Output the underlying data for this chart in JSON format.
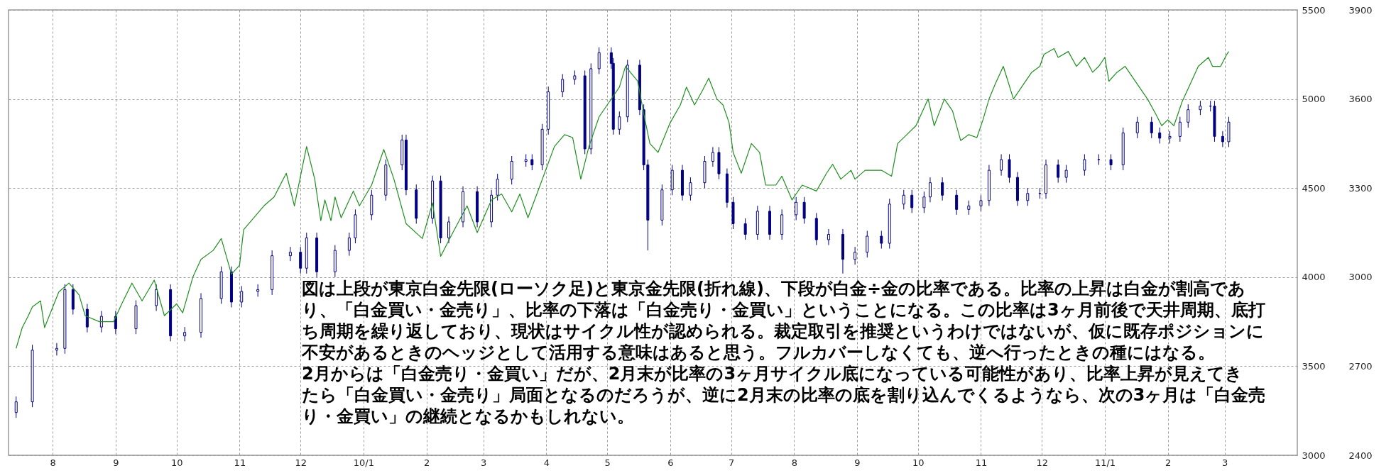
{
  "chart_data": {
    "type": "candlestick",
    "xlim": [
      "2009-07-12",
      "2011-04-04"
    ],
    "xticks": [
      {
        "value": "2009-08-01",
        "label": "8"
      },
      {
        "value": "2009-09-01",
        "label": "9"
      },
      {
        "value": "2009-10-01",
        "label": "10"
      },
      {
        "value": "2009-11-01",
        "label": "11"
      },
      {
        "value": "2009-12-01",
        "label": "12"
      },
      {
        "value": "2010-01-01",
        "label": "10/1"
      },
      {
        "value": "2010-02-01",
        "label": "2"
      },
      {
        "value": "2010-03-01",
        "label": "3"
      },
      {
        "value": "2010-04-01",
        "label": "4"
      },
      {
        "value": "2010-05-01",
        "label": "5"
      },
      {
        "value": "2010-06-01",
        "label": "6"
      },
      {
        "value": "2010-07-01",
        "label": "7"
      },
      {
        "value": "2010-08-01",
        "label": "8"
      },
      {
        "value": "2010-09-01",
        "label": "9"
      },
      {
        "value": "2010-10-01",
        "label": "10"
      },
      {
        "value": "2010-11-01",
        "label": "11"
      },
      {
        "value": "2010-12-01",
        "label": "12"
      },
      {
        "value": "2011-01-01",
        "label": "11/1"
      },
      {
        "value": "2011-02-01",
        "label": "2"
      },
      {
        "value": "2011-03-01",
        "label": "3"
      }
    ],
    "ylim": [
      3000,
      5500
    ],
    "yticks": [
      3000,
      3500,
      4000,
      4500,
      5000,
      5500
    ],
    "y2lim": [
      2400,
      3900
    ],
    "y2ticks": [
      2400,
      2700,
      3000,
      3300,
      3600,
      3900
    ],
    "grid": true,
    "color": "#000080",
    "x": [
      "2009-07-14",
      "2009-07-22",
      "2009-08-03",
      "2009-08-07",
      "2009-08-11",
      "2009-08-18",
      "2009-08-25",
      "2009-09-01",
      "2009-09-11",
      "2009-09-21",
      "2009-09-28",
      "2009-10-05",
      "2009-10-13",
      "2009-10-23",
      "2009-10-28",
      "2009-11-02",
      "2009-11-10",
      "2009-11-17",
      "2009-11-26",
      "2009-12-01",
      "2009-12-04",
      "2009-12-09",
      "2009-12-18",
      "2009-12-25",
      "2009-12-28",
      "2010-01-05",
      "2010-01-12",
      "2010-01-20",
      "2010-01-22",
      "2010-01-27",
      "2010-02-04",
      "2010-02-08",
      "2010-02-12",
      "2010-02-19",
      "2010-02-26",
      "2010-03-05",
      "2010-03-08",
      "2010-03-15",
      "2010-03-22",
      "2010-03-25",
      "2010-03-30",
      "2010-04-02",
      "2010-04-09",
      "2010-04-15",
      "2010-04-20",
      "2010-04-23",
      "2010-04-27",
      "2010-05-03",
      "2010-05-04",
      "2010-05-07",
      "2010-05-11",
      "2010-05-17",
      "2010-05-19",
      "2010-05-21",
      "2010-05-28",
      "2010-06-02",
      "2010-06-07",
      "2010-06-11",
      "2010-06-18",
      "2010-06-22",
      "2010-06-25",
      "2010-06-29",
      "2010-07-02",
      "2010-07-08",
      "2010-07-14",
      "2010-07-20",
      "2010-07-26",
      "2010-08-02",
      "2010-08-06",
      "2010-08-12",
      "2010-08-18",
      "2010-08-25",
      "2010-08-31",
      "2010-09-06",
      "2010-09-13",
      "2010-09-17",
      "2010-09-24",
      "2010-09-28",
      "2010-10-04",
      "2010-10-07",
      "2010-10-13",
      "2010-10-20",
      "2010-10-26",
      "2010-11-01",
      "2010-11-05",
      "2010-11-11",
      "2010-11-15",
      "2010-11-19",
      "2010-11-24",
      "2010-11-30",
      "2010-12-03",
      "2010-12-09",
      "2010-12-13",
      "2010-12-22",
      "2010-12-29",
      "2011-01-04",
      "2011-01-10",
      "2011-01-17",
      "2011-01-24",
      "2011-01-28",
      "2011-02-02",
      "2011-02-07",
      "2011-02-11",
      "2011-02-17",
      "2011-02-22",
      "2011-02-24",
      "2011-02-28",
      "2011-03-03"
    ],
    "ohlc": [
      [
        3240,
        3330,
        3210,
        3300
      ],
      [
        3300,
        3620,
        3270,
        3590
      ],
      [
        3590,
        3630,
        3560,
        3600
      ],
      [
        3600,
        3960,
        3570,
        3930
      ],
      [
        3930,
        3960,
        3790,
        3820
      ],
      [
        3820,
        3850,
        3690,
        3720
      ],
      [
        3720,
        3810,
        3690,
        3780
      ],
      [
        3780,
        3810,
        3680,
        3710
      ],
      [
        3710,
        3870,
        3680,
        3840
      ],
      [
        3840,
        3960,
        3810,
        3930
      ],
      [
        3930,
        3960,
        3640,
        3670
      ],
      [
        3670,
        3720,
        3640,
        3690
      ],
      [
        3690,
        3910,
        3660,
        3880
      ],
      [
        3880,
        4060,
        3850,
        4030
      ],
      [
        4030,
        4060,
        3830,
        3860
      ],
      [
        3860,
        3950,
        3830,
        3920
      ],
      [
        3920,
        3960,
        3890,
        3930
      ],
      [
        3930,
        4150,
        3900,
        4120
      ],
      [
        4120,
        4170,
        4090,
        4140
      ],
      [
        4140,
        4170,
        4020,
        4050
      ],
      [
        4050,
        4250,
        4020,
        4220
      ],
      [
        4220,
        4250,
        4000,
        4030
      ],
      [
        4030,
        4180,
        4000,
        4150
      ],
      [
        4150,
        4250,
        4120,
        4220
      ],
      [
        4220,
        4380,
        4190,
        4350
      ],
      [
        4350,
        4490,
        4320,
        4460
      ],
      [
        4460,
        4660,
        4430,
        4630
      ],
      [
        4630,
        4800,
        4600,
        4770
      ],
      [
        4770,
        4800,
        4460,
        4490
      ],
      [
        4490,
        4520,
        4300,
        4330
      ],
      [
        4330,
        4570,
        4300,
        4540
      ],
      [
        4540,
        4570,
        4190,
        4220
      ],
      [
        4220,
        4340,
        4190,
        4310
      ],
      [
        4310,
        4510,
        4280,
        4480
      ],
      [
        4480,
        4510,
        4280,
        4310
      ],
      [
        4310,
        4490,
        4280,
        4460
      ],
      [
        4460,
        4580,
        4430,
        4550
      ],
      [
        4550,
        4680,
        4520,
        4650
      ],
      [
        4650,
        4690,
        4620,
        4660
      ],
      [
        4660,
        4690,
        4600,
        4630
      ],
      [
        4630,
        4860,
        4600,
        4830
      ],
      [
        4830,
        5070,
        4800,
        5040
      ],
      [
        5040,
        5140,
        5010,
        5110
      ],
      [
        5110,
        5160,
        5080,
        5130
      ],
      [
        5130,
        5160,
        4690,
        4720
      ],
      [
        4720,
        5200,
        4690,
        5170
      ],
      [
        5170,
        5290,
        5140,
        5260
      ],
      [
        5260,
        5290,
        5170,
        5200
      ],
      [
        5200,
        5230,
        4800,
        4830
      ],
      [
        4830,
        4930,
        4800,
        4900
      ],
      [
        4900,
        5220,
        4870,
        5190
      ],
      [
        5190,
        5220,
        4910,
        4940
      ],
      [
        4940,
        4970,
        4600,
        4630
      ],
      [
        4630,
        4660,
        4150,
        4320
      ],
      [
        4320,
        4520,
        4290,
        4490
      ],
      [
        4490,
        4630,
        4460,
        4600
      ],
      [
        4600,
        4630,
        4430,
        4460
      ],
      [
        4460,
        4560,
        4430,
        4530
      ],
      [
        4530,
        4680,
        4500,
        4650
      ],
      [
        4650,
        4730,
        4620,
        4700
      ],
      [
        4700,
        4730,
        4550,
        4580
      ],
      [
        4580,
        4610,
        4390,
        4420
      ],
      [
        4420,
        4450,
        4270,
        4300
      ],
      [
        4300,
        4330,
        4210,
        4240
      ],
      [
        4240,
        4400,
        4210,
        4370
      ],
      [
        4370,
        4400,
        4210,
        4240
      ],
      [
        4240,
        4380,
        4210,
        4350
      ],
      [
        4350,
        4450,
        4320,
        4420
      ],
      [
        4420,
        4450,
        4300,
        4330
      ],
      [
        4330,
        4360,
        4180,
        4210
      ],
      [
        4210,
        4270,
        4180,
        4240
      ],
      [
        4240,
        4270,
        4020,
        4100
      ],
      [
        4100,
        4170,
        4070,
        4140
      ],
      [
        4140,
        4260,
        4110,
        4230
      ],
      [
        4230,
        4260,
        4160,
        4190
      ],
      [
        4190,
        4440,
        4160,
        4410
      ],
      [
        4410,
        4490,
        4380,
        4460
      ],
      [
        4460,
        4490,
        4360,
        4390
      ],
      [
        4390,
        4480,
        4360,
        4450
      ],
      [
        4450,
        4560,
        4420,
        4530
      ],
      [
        4530,
        4560,
        4430,
        4460
      ],
      [
        4460,
        4490,
        4350,
        4380
      ],
      [
        4380,
        4430,
        4350,
        4400
      ],
      [
        4400,
        4460,
        4370,
        4430
      ],
      [
        4430,
        4630,
        4400,
        4600
      ],
      [
        4600,
        4690,
        4570,
        4660
      ],
      [
        4660,
        4690,
        4530,
        4560
      ],
      [
        4560,
        4590,
        4400,
        4430
      ],
      [
        4430,
        4500,
        4400,
        4470
      ],
      [
        4470,
        4500,
        4440,
        4470
      ],
      [
        4470,
        4660,
        4440,
        4630
      ],
      [
        4630,
        4660,
        4530,
        4560
      ],
      [
        4560,
        4630,
        4530,
        4600
      ],
      [
        4600,
        4690,
        4570,
        4660
      ],
      [
        4660,
        4690,
        4630,
        4660
      ],
      [
        4660,
        4690,
        4600,
        4630
      ],
      [
        4630,
        4840,
        4600,
        4810
      ],
      [
        4810,
        4900,
        4780,
        4870
      ],
      [
        4870,
        4900,
        4780,
        4810
      ],
      [
        4810,
        4840,
        4750,
        4780
      ],
      [
        4780,
        4820,
        4750,
        4790
      ],
      [
        4790,
        4900,
        4760,
        4870
      ],
      [
        4870,
        4970,
        4840,
        4940
      ],
      [
        4940,
        4990,
        4910,
        4960
      ],
      [
        4960,
        4990,
        4930,
        4960
      ],
      [
        4960,
        4990,
        4760,
        4790
      ],
      [
        4790,
        4820,
        4730,
        4760
      ],
      [
        4760,
        4900,
        4730,
        4870
      ]
    ],
    "series": [
      {
        "type": "line",
        "axis": "y2",
        "color": "#1f8f1f",
        "x": [
          "2009-07-14",
          "2009-07-17",
          "2009-07-20",
          "2009-07-22",
          "2009-07-26",
          "2009-07-28",
          "2009-08-04",
          "2009-08-09",
          "2009-08-14",
          "2009-08-17",
          "2009-08-24",
          "2009-08-31",
          "2009-09-04",
          "2009-09-09",
          "2009-09-14",
          "2009-09-20",
          "2009-09-25",
          "2009-10-01",
          "2009-10-04",
          "2009-10-09",
          "2009-10-13",
          "2009-10-19",
          "2009-10-23",
          "2009-10-28",
          "2009-11-01",
          "2009-11-03",
          "2009-11-08",
          "2009-11-13",
          "2009-11-18",
          "2009-11-24",
          "2009-11-28",
          "2009-12-04",
          "2009-12-08",
          "2009-12-11",
          "2009-12-13",
          "2009-12-16",
          "2009-12-18",
          "2009-12-21",
          "2009-12-27",
          "2009-12-30",
          "2010-01-05",
          "2010-01-11",
          "2010-01-16",
          "2010-01-22",
          "2010-01-30",
          "2010-02-04",
          "2010-02-08",
          "2010-02-14",
          "2010-02-21",
          "2010-02-26",
          "2010-03-05",
          "2010-03-10",
          "2010-03-15",
          "2010-03-19",
          "2010-03-23",
          "2010-03-29",
          "2010-04-05",
          "2010-04-10",
          "2010-04-14",
          "2010-04-18",
          "2010-04-22",
          "2010-04-27",
          "2010-05-01",
          "2010-05-07",
          "2010-05-10",
          "2010-05-16",
          "2010-05-19",
          "2010-05-22",
          "2010-05-26",
          "2010-06-01",
          "2010-06-06",
          "2010-06-09",
          "2010-06-13",
          "2010-06-17",
          "2010-06-20",
          "2010-06-24",
          "2010-06-27",
          "2010-06-30",
          "2010-07-02",
          "2010-07-06",
          "2010-07-11",
          "2010-07-15",
          "2010-07-18",
          "2010-07-23",
          "2010-07-26",
          "2010-07-31",
          "2010-08-05",
          "2010-08-12",
          "2010-08-17",
          "2010-08-20",
          "2010-08-24",
          "2010-08-29",
          "2010-08-31",
          "2010-09-05",
          "2010-09-13",
          "2010-09-18",
          "2010-09-21",
          "2010-09-30",
          "2010-10-06",
          "2010-10-09",
          "2010-10-14",
          "2010-10-18",
          "2010-10-22",
          "2010-10-26",
          "2010-10-30",
          "2010-11-02",
          "2010-11-05",
          "2010-11-08",
          "2010-11-12",
          "2010-11-17",
          "2010-11-22",
          "2010-11-26",
          "2010-11-30",
          "2010-12-02",
          "2010-12-07",
          "2010-12-09",
          "2010-12-14",
          "2010-12-18",
          "2010-12-22",
          "2010-12-26",
          "2010-12-29",
          "2011-01-01",
          "2011-01-03",
          "2011-01-07",
          "2011-01-11",
          "2011-01-19",
          "2011-01-22",
          "2011-01-26",
          "2011-01-29",
          "2011-02-01",
          "2011-02-04",
          "2011-02-08",
          "2011-02-12",
          "2011-02-16",
          "2011-02-21",
          "2011-02-23",
          "2011-02-27",
          "2011-03-02",
          "2011-03-03"
        ],
        "values": [
          2760,
          2830,
          2870,
          2900,
          2920,
          2830,
          2950,
          2980,
          2940,
          2870,
          2850,
          2850,
          2910,
          2980,
          2920,
          2990,
          2870,
          2910,
          2880,
          3000,
          3060,
          3090,
          3130,
          3010,
          3040,
          3160,
          3200,
          3240,
          3270,
          3350,
          3240,
          3440,
          3330,
          3190,
          3260,
          3190,
          3270,
          3200,
          3290,
          3240,
          3310,
          3430,
          3330,
          3180,
          3130,
          3250,
          3070,
          3150,
          3240,
          3150,
          3260,
          3280,
          3220,
          3280,
          3200,
          3310,
          3440,
          3480,
          3470,
          3330,
          3440,
          3540,
          3580,
          3640,
          3710,
          3660,
          3550,
          3450,
          3420,
          3520,
          3580,
          3640,
          3580,
          3630,
          3670,
          3600,
          3580,
          3520,
          3420,
          3350,
          3450,
          3420,
          3310,
          3310,
          3340,
          3260,
          3310,
          3290,
          3350,
          3380,
          3330,
          3360,
          3330,
          3360,
          3360,
          3340,
          3450,
          3510,
          3600,
          3510,
          3600,
          3560,
          3460,
          3480,
          3470,
          3530,
          3600,
          3650,
          3710,
          3600,
          3650,
          3690,
          3710,
          3750,
          3770,
          3740,
          3760,
          3710,
          3740,
          3690,
          3710,
          3740,
          3660,
          3690,
          3710,
          3630,
          3600,
          3550,
          3510,
          3530,
          3510,
          3590,
          3650,
          3710,
          3740,
          3710,
          3710,
          3750,
          3760
        ]
      }
    ],
    "annotations": [
      "　図は上段が東京白金先限(ローソク足)と東京金先限(折れ線)、下段が白金÷金の比率である。比率の上昇は白金が割高であり、「白金買い・金売り」、比率の下落は「白金売り・金買い」ということになる。この比率は3ヶ月前後で天井周期、底打ち周期を繰り返しており、現状はサイクル性が認められる。裁定取引を推奨というわけではないが、仮に既存ポジションに不安があるときのヘッジとして活用する意味はあると思う。フルカバーしなくても、逆へ行ったときの種にはなる。",
      "　2月からは「白金売り・金買い」だが、2月末が比率の3ヶ月サイクル底になっている可能性があり、比率上昇が見えてきたら「白金買い・金売り」局面となるのだろうが、逆に2月末の比率の底を割り込んでくるようなら、次の3ヶ月は「白金売り・金買い」の継続となるかもしれない。"
    ]
  }
}
